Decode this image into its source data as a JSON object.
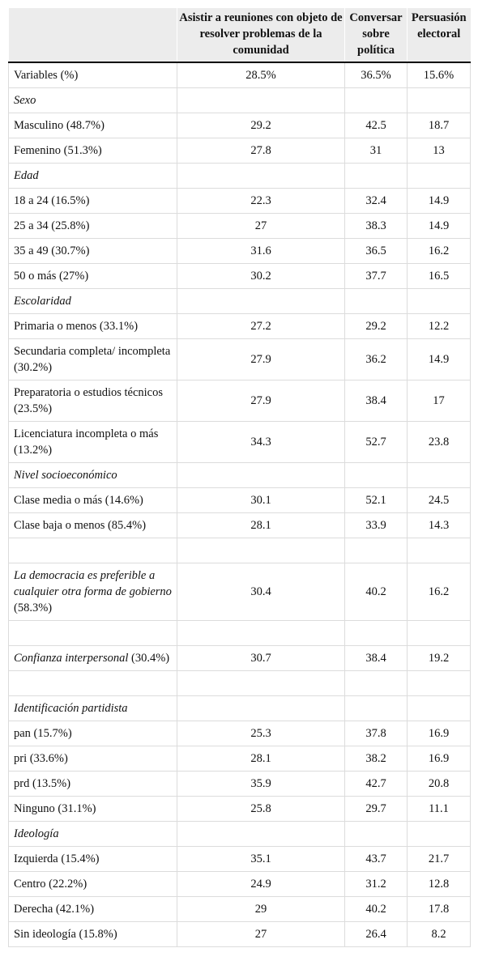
{
  "table": {
    "header": [
      "Asistir a reuniones con objeto de resolver problemas de la comunidad",
      "Conversar sobre política",
      "Persuasión electoral"
    ],
    "rows": [
      {
        "label": "Variables (%)",
        "values": [
          "28.5%",
          "36.5%",
          "15.6%"
        ]
      },
      {
        "section": "Sexo"
      },
      {
        "label": "Masculino (48.7%)",
        "values": [
          "29.2",
          "42.5",
          "18.7"
        ]
      },
      {
        "label": "Femenino (51.3%)",
        "values": [
          "27.8",
          "31",
          "13"
        ]
      },
      {
        "section": "Edad"
      },
      {
        "label": "18 a 24 (16.5%)",
        "values": [
          "22.3",
          "32.4",
          "14.9"
        ]
      },
      {
        "label": "25 a 34 (25.8%)",
        "values": [
          "27",
          "38.3",
          "14.9"
        ]
      },
      {
        "label": "35 a 49 (30.7%)",
        "values": [
          "31.6",
          "36.5",
          "16.2"
        ]
      },
      {
        "label": "50 o más (27%)",
        "values": [
          "30.2",
          "37.7",
          "16.5"
        ]
      },
      {
        "section": "Escolaridad"
      },
      {
        "label": "Primaria o menos (33.1%)",
        "values": [
          "27.2",
          "29.2",
          "12.2"
        ]
      },
      {
        "label": "Secundaria completa/ incompleta (30.2%)",
        "values": [
          "27.9",
          "36.2",
          "14.9"
        ]
      },
      {
        "label": "Preparatoria o estudios técnicos (23.5%)",
        "values": [
          "27.9",
          "38.4",
          "17"
        ]
      },
      {
        "label": "Licenciatura incompleta o más (13.2%)",
        "values": [
          "34.3",
          "52.7",
          "23.8"
        ]
      },
      {
        "section": "Nivel socioeconómico"
      },
      {
        "label": "Clase media o más (14.6%)",
        "values": [
          "30.1",
          "52.1",
          "24.5"
        ]
      },
      {
        "label": "Clase baja o menos (85.4%)",
        "values": [
          "28.1",
          "33.9",
          "14.3"
        ]
      },
      null,
      {
        "section": "La democracia es preferible a cualquier otra forma de gobierno",
        "note": "(58.3%)",
        "values": [
          "30.4",
          "40.2",
          "16.2"
        ]
      },
      null,
      {
        "section": "Confianza interpersonal",
        "note": "(30.4%)",
        "values": [
          "30.7",
          "38.4",
          "19.2"
        ]
      },
      null,
      {
        "section": "Identificación partidista"
      },
      {
        "label": "pan (15.7%)",
        "values": [
          "25.3",
          "37.8",
          "16.9"
        ]
      },
      {
        "label": "pri (33.6%)",
        "values": [
          "28.1",
          "38.2",
          "16.9"
        ]
      },
      {
        "label": "prd (13.5%)",
        "values": [
          "35.9",
          "42.7",
          "20.8"
        ]
      },
      {
        "label": "Ninguno (31.1%)",
        "values": [
          "25.8",
          "29.7",
          "11.1"
        ]
      },
      {
        "section": "Ideología"
      },
      {
        "label": "Izquierda (15.4%)",
        "values": [
          "35.1",
          "43.7",
          "21.7"
        ]
      },
      {
        "label": "Centro (22.2%)",
        "values": [
          "24.9",
          "31.2",
          "12.8"
        ]
      },
      {
        "label": "Derecha (42.1%)",
        "values": [
          "29",
          "40.2",
          "17.8"
        ]
      },
      {
        "label": "Sin ideología (15.8%)",
        "values": [
          "27",
          "26.4",
          "8.2"
        ]
      }
    ]
  }
}
